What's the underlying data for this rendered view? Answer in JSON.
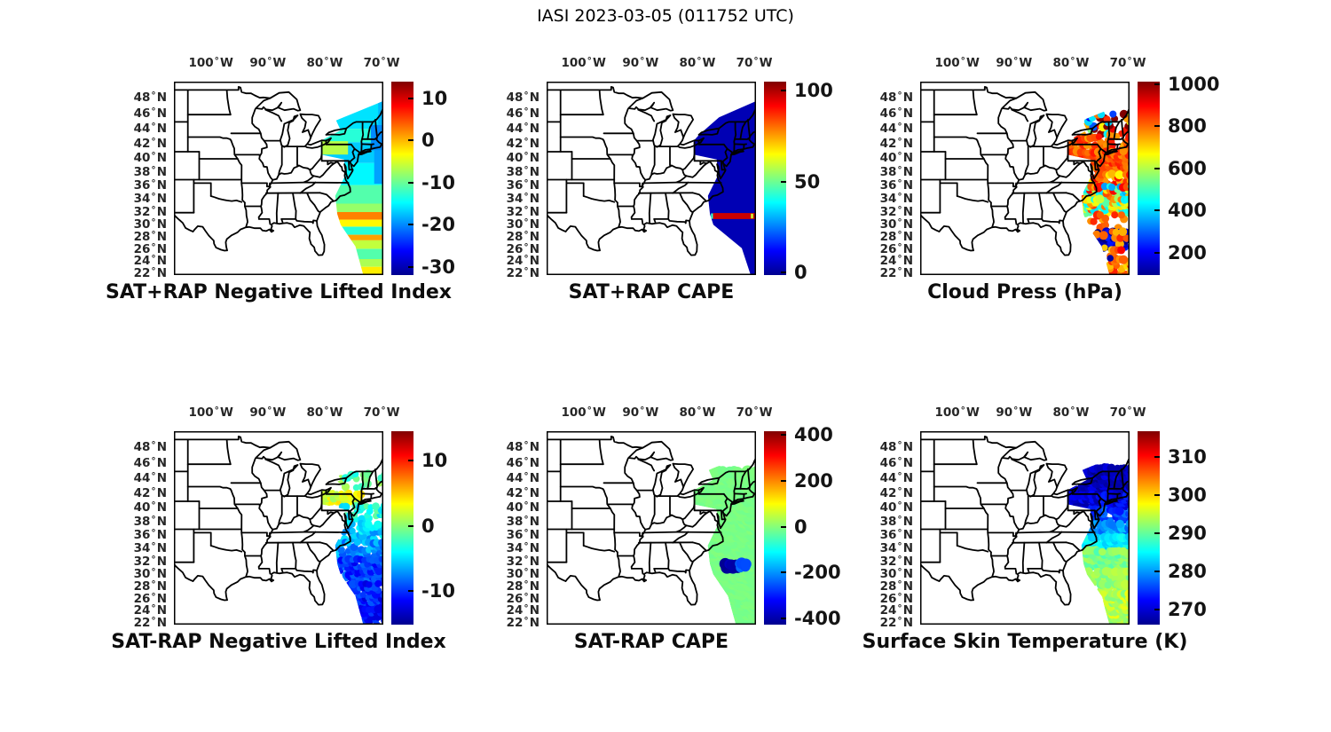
{
  "figure_title": "IASI 2023-03-05 (011752 UTC)",
  "axes": {
    "degree_symbol": "°",
    "lon_ticks": [
      {
        "value": "100",
        "hemi": "W"
      },
      {
        "value": "90",
        "hemi": "W"
      },
      {
        "value": "80",
        "hemi": "W"
      },
      {
        "value": "70",
        "hemi": "W"
      }
    ],
    "lat_ticks": [
      {
        "value": "48",
        "hemi": "N"
      },
      {
        "value": "46",
        "hemi": "N"
      },
      {
        "value": "44",
        "hemi": "N"
      },
      {
        "value": "42",
        "hemi": "N"
      },
      {
        "value": "40",
        "hemi": "N"
      },
      {
        "value": "38",
        "hemi": "N"
      },
      {
        "value": "36",
        "hemi": "N"
      },
      {
        "value": "34",
        "hemi": "N"
      },
      {
        "value": "32",
        "hemi": "N"
      },
      {
        "value": "30",
        "hemi": "N"
      },
      {
        "value": "28",
        "hemi": "N"
      },
      {
        "value": "26",
        "hemi": "N"
      },
      {
        "value": "24",
        "hemi": "N"
      },
      {
        "value": "22",
        "hemi": "N"
      }
    ]
  },
  "chart_data": {
    "type": "heatmap",
    "description": "Six Mercator map panels of IASI sounding retrievals over the eastern United States, each with a jet colorbar. A satellite swath of data lies along the US east coast and western Atlantic.",
    "projection": "mercator",
    "map_bounds": {
      "lon_w": [
        106.5,
        69.7
      ],
      "lat": [
        21.8,
        50.0
      ]
    },
    "lon_tick_values": [
      100,
      90,
      80,
      70
    ],
    "lat_tick_values": [
      48,
      46,
      44,
      42,
      40,
      38,
      36,
      34,
      32,
      30,
      28,
      26,
      24,
      22
    ],
    "swaths": {
      "A": [
        [
          68.5,
          48.0
        ],
        [
          78.0,
          45.2
        ],
        [
          77.2,
          43.9
        ],
        [
          80.65,
          42.5
        ],
        [
          80.65,
          40.6
        ],
        [
          76.6,
          39.9
        ],
        [
          76.4,
          37.6
        ],
        [
          78.15,
          34.6
        ],
        [
          77.8,
          31.8
        ],
        [
          77.2,
          30.1
        ],
        [
          74.6,
          26.6
        ],
        [
          73.2,
          21.7
        ],
        [
          68.5,
          21.7
        ]
      ],
      "B": [
        [
          68.5,
          48.0
        ],
        [
          76.2,
          45.6
        ],
        [
          79.7,
          43.3
        ],
        [
          80.65,
          42.5
        ],
        [
          80.65,
          40.6
        ],
        [
          76.6,
          39.9
        ],
        [
          76.4,
          37.6
        ],
        [
          78.15,
          34.6
        ],
        [
          77.8,
          31.8
        ],
        [
          77.2,
          30.1
        ],
        [
          72.2,
          26.3
        ],
        [
          70.6,
          21.7
        ],
        [
          68.5,
          21.7
        ]
      ]
    },
    "panels": [
      {
        "id": "sat_plus_rap_nli",
        "row": 0,
        "col": 0,
        "title": "SAT+RAP Negative Lifted Index",
        "style": "filled",
        "swath": "A",
        "colorbar": {
          "vmin": -32,
          "vmax": 14,
          "ticks": [
            10,
            0,
            -10,
            -20,
            -30
          ]
        },
        "bands": [
          {
            "lat": [
              48.0,
              44.1
            ],
            "value": -16
          },
          {
            "lat": [
              44.1,
              42.3
            ],
            "value": -13
          },
          {
            "lat": [
              42.3,
              39.4
            ],
            "value": -17
          },
          {
            "lat": [
              39.4,
              36.2
            ],
            "value": -15
          },
          {
            "lat": [
              36.2,
              33.4
            ],
            "value": -11
          },
          {
            "lat": [
              33.4,
              32.1
            ],
            "value": -8
          },
          {
            "lat": [
              32.1,
              30.9
            ],
            "value": 2.5
          },
          {
            "lat": [
              30.9,
              29.8
            ],
            "value": -3
          },
          {
            "lat": [
              29.8,
              28.5
            ],
            "value": -13
          },
          {
            "lat": [
              28.5,
              27.6
            ],
            "value": 1
          },
          {
            "lat": [
              27.6,
              26.2
            ],
            "value": -6
          },
          {
            "lat": [
              26.2,
              24.5
            ],
            "value": -11
          },
          {
            "lat": [
              24.5,
              23.2
            ],
            "value": -7
          },
          {
            "lat": [
              23.2,
              21.7
            ],
            "value": -2.5
          }
        ],
        "patches": [
          {
            "lat": [
              42.45,
              40.6
            ],
            "lon": [
              80.6,
              75.9
            ],
            "value": -6.5
          },
          {
            "lat": [
              44.6,
              41.2
            ],
            "lon": [
              71.9,
              68.5
            ],
            "value": -20
          },
          {
            "lat": [
              41.2,
              36.4
            ],
            "lon": [
              71.3,
              68.5
            ],
            "value": -19
          },
          {
            "lat": [
              48.0,
              44.6
            ],
            "lon": [
              70.6,
              68.5
            ],
            "value": -18
          }
        ]
      },
      {
        "id": "sat_plus_rap_cape",
        "row": 0,
        "col": 1,
        "title": "SAT+RAP CAPE",
        "style": "filled",
        "swath": "B",
        "colorbar": {
          "vmin": -1.5,
          "vmax": 105,
          "ticks": [
            100,
            50,
            0
          ]
        },
        "bands": [
          {
            "lat": [
              48.0,
              21.7
            ],
            "value": 4
          }
        ],
        "patches": [
          {
            "lat": [
              31.95,
              31.0
            ],
            "lon": [
              77.25,
              68.5
            ],
            "value": 97
          },
          {
            "lat": [
              31.9,
              31.05
            ],
            "lon": [
              77.6,
              77.25
            ],
            "value": 45
          },
          {
            "lat": [
              31.85,
              31.1
            ],
            "lon": [
              70.6,
              70.2
            ],
            "value": 60
          }
        ]
      },
      {
        "id": "cloud_press",
        "row": 0,
        "col": 2,
        "title": "Cloud Press (hPa)",
        "style": "dots",
        "swath": "A",
        "dot_radius": 4.3,
        "lon_step": 0.62,
        "lat_step": 0.5,
        "colorbar": {
          "vmin": 93,
          "vmax": 1013,
          "ticks": [
            1000,
            800,
            600,
            400,
            200
          ]
        },
        "bands": [
          {
            "lat": [
              46.0,
              43.2
            ],
            "value": 640,
            "value_spread": 480,
            "density": 0.5
          },
          {
            "lat": [
              43.2,
              41.2
            ],
            "value": 815,
            "value_spread": 70,
            "density": 0.55
          },
          {
            "lat": [
              41.2,
              38.2
            ],
            "value": 820,
            "value_spread": 60,
            "density": 0.88
          },
          {
            "lat": [
              38.2,
              36.0
            ],
            "value": 800,
            "value_spread": 140,
            "density": 0.8
          },
          {
            "lat": [
              36.0,
              34.2
            ],
            "value": 650,
            "value_spread": 320,
            "density": 0.75
          },
          {
            "lat": [
              34.2,
              31.8
            ],
            "value": 630,
            "value_spread": 220,
            "density": 0.8
          },
          {
            "lat": [
              31.8,
              29.3
            ],
            "value": 810,
            "value_spread": 70,
            "density": 0.2
          },
          {
            "lat": [
              29.3,
              26.2
            ],
            "lon": [
              75.8,
              70.2
            ],
            "value": 150,
            "value_spread": 90,
            "density": 0.9
          },
          {
            "lat": [
              29.3,
              26.2
            ],
            "value": 800,
            "value_spread": 90,
            "density": 0.15
          },
          {
            "lat": [
              26.2,
              21.7
            ],
            "value": 805,
            "value_spread": 110,
            "density": 0.32
          },
          {
            "lat": [
              25.6,
              23.4
            ],
            "value": 170,
            "value_spread": 70,
            "density": 0.07
          }
        ]
      },
      {
        "id": "sat_minus_rap_nli",
        "row": 1,
        "col": 0,
        "title": "SAT-RAP Negative Lifted Index",
        "style": "dots",
        "swath": "A",
        "dot_radius": 4.0,
        "lon_step": 0.72,
        "lat_step": 0.58,
        "colorbar": {
          "vmin": -15.1,
          "vmax": 14.5,
          "ticks": [
            10,
            0,
            -10
          ]
        },
        "bands": [
          {
            "lat": [
              45.2,
              42.6
            ],
            "value": -1.5,
            "value_spread": 2.5,
            "density": 0.5
          },
          {
            "lat": [
              42.6,
              40.6
            ],
            "lon": [
              80.65,
              73.4
            ],
            "value": 2.5,
            "value_spread": 2.0,
            "density": 0.9
          },
          {
            "lat": [
              40.6,
              38.2
            ],
            "value": -3.5,
            "value_spread": 2.5,
            "density": 0.6
          },
          {
            "lat": [
              38.2,
              35.2
            ],
            "value": -5.5,
            "value_spread": 2.0,
            "density": 0.68
          },
          {
            "lat": [
              35.2,
              32.4
            ],
            "value": -7.0,
            "value_spread": 2.0,
            "density": 0.72
          },
          {
            "lat": [
              32.4,
              28.6
            ],
            "value": -10.0,
            "value_spread": 2.0,
            "density": 0.82
          },
          {
            "lat": [
              28.6,
              24.8
            ],
            "value": -10.5,
            "value_spread": 2.0,
            "density": 0.8
          },
          {
            "lat": [
              24.8,
              21.7
            ],
            "value": -11.0,
            "value_spread": 1.5,
            "density": 0.82
          }
        ]
      },
      {
        "id": "sat_minus_rap_cape",
        "row": 1,
        "col": 1,
        "title": "SAT-RAP CAPE",
        "style": "dots",
        "swath": "A",
        "dot_radius": 5.8,
        "lon_step": 0.62,
        "lat_step": 0.5,
        "colorbar": {
          "vmin": -427,
          "vmax": 416,
          "ticks": [
            400,
            200,
            0,
            -200,
            -400
          ]
        },
        "bands": [
          {
            "lat": [
              45.2,
              21.7
            ],
            "value": -10,
            "value_spread": 8,
            "density": 0.95
          },
          {
            "lat": [
              31.9,
              30.95
            ],
            "lon": [
              75.2,
              72.9
            ],
            "value": -390,
            "value_spread": 20,
            "density": 1
          },
          {
            "lat": [
              31.85,
              31.0
            ],
            "lon": [
              72.9,
              71.2
            ],
            "value": -250,
            "value_spread": 30,
            "density": 1
          }
        ]
      },
      {
        "id": "surface_skin_temp",
        "row": 1,
        "col": 2,
        "title": "Surface Skin Temperature (K)",
        "style": "dots",
        "swath": "A",
        "dot_radius": 4.4,
        "lon_step": 0.62,
        "lat_step": 0.5,
        "colorbar": {
          "vmin": 266,
          "vmax": 316.8,
          "ticks": [
            310,
            300,
            290,
            280,
            270
          ]
        },
        "bands": [
          {
            "lat": [
              45.6,
              42.2
            ],
            "value": 269,
            "value_spread": 2.5,
            "density": 0.88
          },
          {
            "lat": [
              42.2,
              40.0
            ],
            "value": 271,
            "value_spread": 3,
            "density": 0.9
          },
          {
            "lat": [
              40.0,
              38.0
            ],
            "value": 275,
            "value_spread": 3,
            "density": 0.82
          },
          {
            "lat": [
              38.0,
              36.0
            ],
            "value": 280,
            "value_spread": 3,
            "density": 0.82
          },
          {
            "lat": [
              36.0,
              34.0
            ],
            "value": 284,
            "value_spread": 2.5,
            "density": 0.82
          },
          {
            "lat": [
              34.0,
              31.0
            ],
            "value": 291,
            "value_spread": 2.5,
            "density": 0.85
          },
          {
            "lat": [
              31.0,
              28.8
            ],
            "value": 293,
            "value_spread": 2.5,
            "density": 0.85
          },
          {
            "lat": [
              28.8,
              27.2
            ],
            "lon": [
              74.8,
              68.5
            ],
            "value": 293,
            "value_spread": 2.5,
            "density": 0.8
          },
          {
            "lat": [
              27.2,
              21.7
            ],
            "value": 294,
            "value_spread": 3,
            "density": 0.85
          }
        ]
      }
    ]
  }
}
